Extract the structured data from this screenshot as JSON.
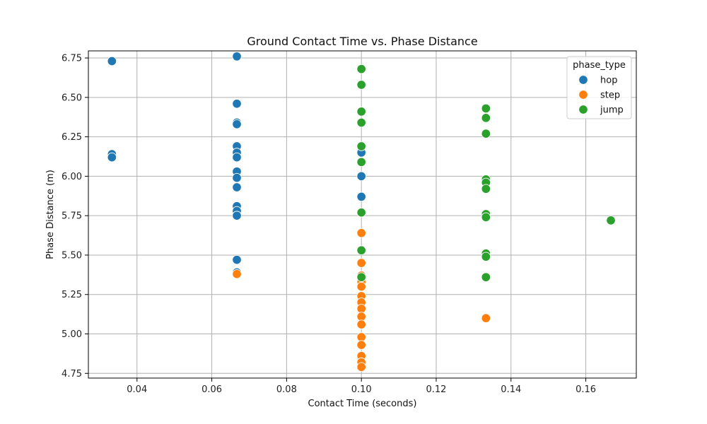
{
  "chart_data": {
    "type": "scatter",
    "title": "Ground Contact Time vs. Phase Distance",
    "xlabel": "Contact Time (seconds)",
    "ylabel": "Phase Distance (m)",
    "xlim": [
      0.027,
      0.1735
    ],
    "ylim": [
      4.72,
      6.795
    ],
    "xticks": [
      "0.04",
      "0.06",
      "0.08",
      "0.10",
      "0.12",
      "0.14",
      "0.16"
    ],
    "yticks": [
      "4.75",
      "5.00",
      "5.25",
      "5.50",
      "5.75",
      "6.00",
      "6.25",
      "6.50",
      "6.75"
    ],
    "grid": true,
    "legend": {
      "title": "phase_type",
      "placement": "top-right"
    },
    "series": [
      {
        "name": "hop",
        "color": "#1f77b4",
        "points": [
          [
            0.0333,
            6.73
          ],
          [
            0.0333,
            6.14
          ],
          [
            0.0333,
            6.12
          ],
          [
            0.0667,
            6.76
          ],
          [
            0.0667,
            6.46
          ],
          [
            0.0667,
            6.34
          ],
          [
            0.0667,
            6.33
          ],
          [
            0.0667,
            6.19
          ],
          [
            0.0667,
            6.15
          ],
          [
            0.0667,
            6.12
          ],
          [
            0.0667,
            6.03
          ],
          [
            0.0667,
            5.99
          ],
          [
            0.0667,
            5.93
          ],
          [
            0.0667,
            5.81
          ],
          [
            0.0667,
            5.78
          ],
          [
            0.0667,
            5.75
          ],
          [
            0.0667,
            5.47
          ],
          [
            0.0667,
            5.39
          ],
          [
            0.1,
            6.15
          ],
          [
            0.1,
            6.0
          ],
          [
            0.1,
            5.87
          ]
        ]
      },
      {
        "name": "step",
        "color": "#ff7f0e",
        "points": [
          [
            0.0667,
            5.38
          ],
          [
            0.1,
            5.64
          ],
          [
            0.1,
            5.45
          ],
          [
            0.1,
            5.37
          ],
          [
            0.1,
            5.33
          ],
          [
            0.1,
            5.3
          ],
          [
            0.1,
            5.24
          ],
          [
            0.1,
            5.2
          ],
          [
            0.1,
            5.16
          ],
          [
            0.1,
            5.11
          ],
          [
            0.1,
            5.06
          ],
          [
            0.1,
            4.98
          ],
          [
            0.1,
            4.93
          ],
          [
            0.1,
            4.86
          ],
          [
            0.1,
            4.82
          ],
          [
            0.1,
            4.79
          ],
          [
            0.1333,
            5.1
          ]
        ]
      },
      {
        "name": "jump",
        "color": "#2ca02c",
        "points": [
          [
            0.1,
            6.68
          ],
          [
            0.1,
            6.58
          ],
          [
            0.1,
            6.41
          ],
          [
            0.1,
            6.34
          ],
          [
            0.1,
            6.19
          ],
          [
            0.1,
            6.09
          ],
          [
            0.1,
            5.77
          ],
          [
            0.1,
            5.53
          ],
          [
            0.1,
            5.36
          ],
          [
            0.1333,
            6.43
          ],
          [
            0.1333,
            6.37
          ],
          [
            0.1333,
            6.27
          ],
          [
            0.1333,
            5.98
          ],
          [
            0.1333,
            5.96
          ],
          [
            0.1333,
            5.92
          ],
          [
            0.1333,
            5.76
          ],
          [
            0.1333,
            5.74
          ],
          [
            0.1333,
            5.51
          ],
          [
            0.1333,
            5.49
          ],
          [
            0.1333,
            5.36
          ],
          [
            0.1667,
            5.72
          ]
        ]
      }
    ]
  }
}
